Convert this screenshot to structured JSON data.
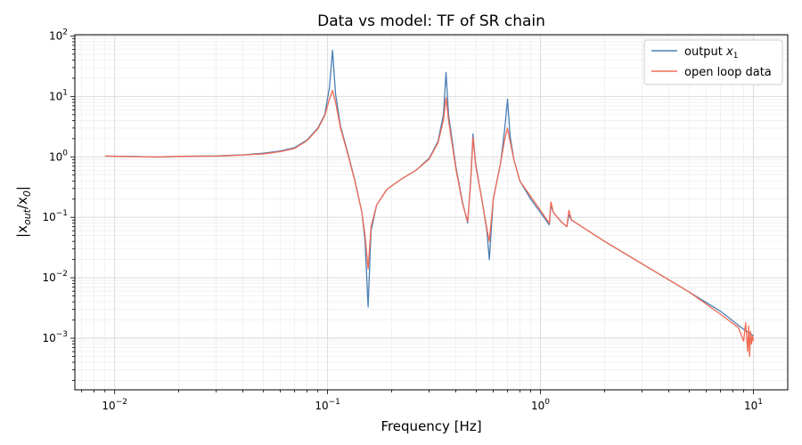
{
  "chart_data": {
    "type": "line",
    "title": "Data vs model: TF of SR chain",
    "xlabel": "Frequency [Hz]",
    "ylabel": {
      "prefix": "|x",
      "sub1": "out",
      "mid": "/x",
      "sub2": "0",
      "suffix": "|"
    },
    "xscale": "log",
    "yscale": "log",
    "xlim": [
      0.0065,
      14.5
    ],
    "ylim": [
      0.00014,
      105
    ],
    "x_ticks": [
      {
        "value": 0.01,
        "base": "10",
        "exp": "−2"
      },
      {
        "value": 0.1,
        "base": "10",
        "exp": "−1"
      },
      {
        "value": 1,
        "base": "10",
        "exp": "0"
      },
      {
        "value": 10,
        "base": "10",
        "exp": "1"
      }
    ],
    "y_ticks": [
      {
        "value": 0.001,
        "base": "10",
        "exp": "−3"
      },
      {
        "value": 0.01,
        "base": "10",
        "exp": "−2"
      },
      {
        "value": 0.1,
        "base": "10",
        "exp": "−1"
      },
      {
        "value": 1,
        "base": "10",
        "exp": "0"
      },
      {
        "value": 10,
        "base": "10",
        "exp": "1"
      },
      {
        "value": 100,
        "base": "10",
        "exp": "2"
      }
    ],
    "grid": true,
    "legend_position": "top-right",
    "series": [
      {
        "name": "output x1",
        "legend": {
          "text": "output ",
          "var": "x",
          "sub": "1"
        },
        "color": "#4a7fb5",
        "points": [
          [
            0.009,
            1.03
          ],
          [
            0.012,
            1.02
          ],
          [
            0.016,
            0.99
          ],
          [
            0.02,
            1.02
          ],
          [
            0.03,
            1.04
          ],
          [
            0.04,
            1.08
          ],
          [
            0.05,
            1.15
          ],
          [
            0.06,
            1.25
          ],
          [
            0.07,
            1.42
          ],
          [
            0.08,
            1.9
          ],
          [
            0.09,
            3.0
          ],
          [
            0.097,
            5.0
          ],
          [
            0.102,
            14.0
          ],
          [
            0.1055,
            58.0
          ],
          [
            0.109,
            11.0
          ],
          [
            0.115,
            3.2
          ],
          [
            0.125,
            1.1
          ],
          [
            0.135,
            0.38
          ],
          [
            0.145,
            0.12
          ],
          [
            0.15,
            0.04
          ],
          [
            0.155,
            0.0033
          ],
          [
            0.16,
            0.06
          ],
          [
            0.17,
            0.16
          ],
          [
            0.19,
            0.29
          ],
          [
            0.22,
            0.42
          ],
          [
            0.26,
            0.6
          ],
          [
            0.3,
            0.95
          ],
          [
            0.33,
            1.8
          ],
          [
            0.35,
            5.0
          ],
          [
            0.36,
            25.0
          ],
          [
            0.37,
            5.0
          ],
          [
            0.4,
            0.7
          ],
          [
            0.43,
            0.18
          ],
          [
            0.455,
            0.08
          ],
          [
            0.47,
            0.4
          ],
          [
            0.482,
            2.4
          ],
          [
            0.495,
            0.8
          ],
          [
            0.53,
            0.2
          ],
          [
            0.56,
            0.06
          ],
          [
            0.575,
            0.02
          ],
          [
            0.6,
            0.2
          ],
          [
            0.65,
            0.8
          ],
          [
            0.68,
            3.0
          ],
          [
            0.7,
            9.0
          ],
          [
            0.72,
            2.2
          ],
          [
            0.75,
            0.9
          ],
          [
            0.8,
            0.4
          ],
          [
            0.9,
            0.2
          ],
          [
            1.0,
            0.12
          ],
          [
            1.1,
            0.075
          ],
          [
            1.12,
            0.16
          ],
          [
            1.15,
            0.12
          ],
          [
            1.25,
            0.085
          ],
          [
            1.33,
            0.07
          ],
          [
            1.36,
            0.11
          ],
          [
            1.4,
            0.09
          ],
          [
            2.0,
            0.04
          ],
          [
            3.0,
            0.017
          ],
          [
            5.0,
            0.0058
          ],
          [
            7.0,
            0.0028
          ],
          [
            9.0,
            0.0014
          ],
          [
            10.0,
            0.0011
          ]
        ]
      },
      {
        "name": "open loop data",
        "legend": {
          "text": "open loop data",
          "var": "",
          "sub": ""
        },
        "color": "#f26b55",
        "points": [
          [
            0.009,
            1.03
          ],
          [
            0.012,
            1.01
          ],
          [
            0.016,
            1.0
          ],
          [
            0.02,
            1.02
          ],
          [
            0.03,
            1.03
          ],
          [
            0.04,
            1.07
          ],
          [
            0.05,
            1.12
          ],
          [
            0.06,
            1.22
          ],
          [
            0.07,
            1.38
          ],
          [
            0.08,
            1.85
          ],
          [
            0.09,
            2.9
          ],
          [
            0.097,
            4.8
          ],
          [
            0.102,
            9.0
          ],
          [
            0.1055,
            12.5
          ],
          [
            0.109,
            8.0
          ],
          [
            0.115,
            3.0
          ],
          [
            0.125,
            1.05
          ],
          [
            0.135,
            0.37
          ],
          [
            0.145,
            0.12
          ],
          [
            0.15,
            0.05
          ],
          [
            0.155,
            0.014
          ],
          [
            0.16,
            0.07
          ],
          [
            0.17,
            0.16
          ],
          [
            0.19,
            0.29
          ],
          [
            0.22,
            0.42
          ],
          [
            0.26,
            0.6
          ],
          [
            0.3,
            0.92
          ],
          [
            0.33,
            1.7
          ],
          [
            0.35,
            4.0
          ],
          [
            0.36,
            9.5
          ],
          [
            0.37,
            4.0
          ],
          [
            0.4,
            0.65
          ],
          [
            0.43,
            0.17
          ],
          [
            0.455,
            0.085
          ],
          [
            0.47,
            0.38
          ],
          [
            0.482,
            2.1
          ],
          [
            0.495,
            0.75
          ],
          [
            0.53,
            0.2
          ],
          [
            0.56,
            0.065
          ],
          [
            0.575,
            0.04
          ],
          [
            0.6,
            0.2
          ],
          [
            0.65,
            0.8
          ],
          [
            0.68,
            2.0
          ],
          [
            0.7,
            3.0
          ],
          [
            0.72,
            1.8
          ],
          [
            0.75,
            0.9
          ],
          [
            0.8,
            0.4
          ],
          [
            0.9,
            0.22
          ],
          [
            1.0,
            0.13
          ],
          [
            1.1,
            0.08
          ],
          [
            1.12,
            0.18
          ],
          [
            1.15,
            0.12
          ],
          [
            1.25,
            0.085
          ],
          [
            1.33,
            0.07
          ],
          [
            1.36,
            0.13
          ],
          [
            1.4,
            0.09
          ],
          [
            2.0,
            0.04
          ],
          [
            3.0,
            0.017
          ],
          [
            5.0,
            0.0058
          ],
          [
            7.0,
            0.0025
          ],
          [
            8.5,
            0.0015
          ],
          [
            9.0,
            0.0009
          ],
          [
            9.2,
            0.0018
          ],
          [
            9.4,
            0.0006
          ],
          [
            9.5,
            0.0016
          ],
          [
            9.6,
            0.0005
          ],
          [
            9.7,
            0.0013
          ],
          [
            9.8,
            0.0008
          ],
          [
            9.9,
            0.0011
          ],
          [
            10.0,
            0.0009
          ]
        ]
      }
    ]
  }
}
